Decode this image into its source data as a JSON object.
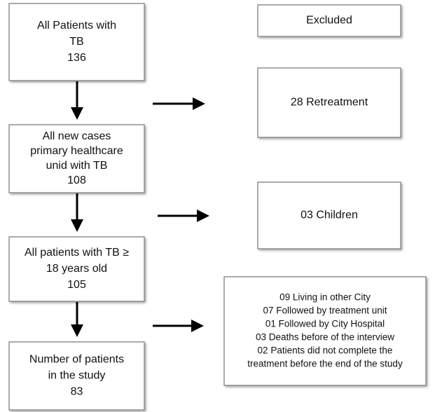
{
  "boxes": [
    {
      "lines": [
        "All Patients with",
        "TB",
        "136"
      ]
    },
    {
      "lines": [
        "All new cases",
        "primary healthcare",
        "unid with TB",
        "108"
      ]
    },
    {
      "lines": [
        "All patients with TB ≥",
        "18 years old",
        "105"
      ]
    },
    {
      "lines": [
        "Number of patients",
        "in the study",
        "83"
      ]
    },
    {
      "lines": [
        "Excluded"
      ]
    },
    {
      "lines": [
        "28 Retreatment"
      ]
    },
    {
      "lines": [
        "03 Children"
      ]
    },
    {
      "lines": [
        "09 Living in other City",
        "07 Followed by treatment unit",
        "01 Followed by City Hospital",
        "03 Deaths before of the interview",
        "02 Patients did not complete the",
        "treatment before the end of the study"
      ]
    }
  ]
}
